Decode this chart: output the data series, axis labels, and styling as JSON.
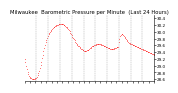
{
  "title": "Milwaukee  Barometric Pressure per Minute  (Last 24 Hours)",
  "line_color": "#ff0000",
  "bg_color": "#ffffff",
  "grid_color": "#888888",
  "y_tick_labels": [
    "30.4",
    "30.2",
    "30.0",
    "29.8",
    "29.6",
    "29.4",
    "29.2",
    "29.0",
    "28.8",
    "28.6"
  ],
  "ylim": [
    28.55,
    30.5
  ],
  "xlim": [
    0,
    1440
  ],
  "num_vgrid": 10,
  "title_fontsize": 3.8,
  "tick_fontsize": 3.0,
  "pressure_data": [
    29.2,
    29.1,
    29.0,
    28.9,
    28.8,
    28.75,
    28.7,
    28.68,
    28.65,
    28.63,
    28.61,
    28.6,
    28.6,
    28.61,
    28.62,
    28.63,
    28.65,
    28.68,
    28.72,
    28.78,
    28.85,
    28.93,
    29.02,
    29.12,
    29.22,
    29.32,
    29.42,
    29.52,
    29.62,
    29.7,
    29.77,
    29.83,
    29.88,
    29.92,
    29.96,
    29.99,
    30.02,
    30.05,
    30.08,
    30.11,
    30.13,
    30.15,
    30.17,
    30.18,
    30.19,
    30.2,
    30.21,
    30.22,
    30.23,
    30.24,
    30.24,
    30.24,
    30.23,
    30.22,
    30.21,
    30.19,
    30.17,
    30.15,
    30.13,
    30.1,
    30.07,
    30.04,
    30.01,
    29.97,
    29.93,
    29.89,
    29.85,
    29.82,
    29.78,
    29.75,
    29.71,
    29.68,
    29.65,
    29.62,
    29.59,
    29.57,
    29.54,
    29.52,
    29.5,
    29.48,
    29.46,
    29.45,
    29.44,
    29.43,
    29.43,
    29.44,
    29.45,
    29.46,
    29.47,
    29.49,
    29.51,
    29.53,
    29.55,
    29.57,
    29.58,
    29.59,
    29.6,
    29.61,
    29.62,
    29.63,
    29.63,
    29.64,
    29.64,
    29.64,
    29.63,
    29.63,
    29.62,
    29.61,
    29.6,
    29.59,
    29.58,
    29.57,
    29.56,
    29.55,
    29.54,
    29.53,
    29.52,
    29.51,
    29.5,
    29.49,
    29.49,
    29.49,
    29.49,
    29.5,
    29.51,
    29.52,
    29.53,
    29.54,
    29.55,
    29.56,
    29.7,
    29.8,
    29.87,
    29.91,
    29.93,
    29.92,
    29.9,
    29.87,
    29.84,
    29.81,
    29.78,
    29.75,
    29.72,
    29.7,
    29.68,
    29.66,
    29.65,
    29.64,
    29.63,
    29.62,
    29.61,
    29.6,
    29.59,
    29.58,
    29.57,
    29.56,
    29.55,
    29.54,
    29.53,
    29.52,
    29.51,
    29.5,
    29.49,
    29.48,
    29.47,
    29.46,
    29.45,
    29.44,
    29.43,
    29.42,
    29.41,
    29.4,
    29.39,
    29.38,
    29.37,
    29.36,
    29.35,
    29.34,
    29.33,
    29.32
  ]
}
